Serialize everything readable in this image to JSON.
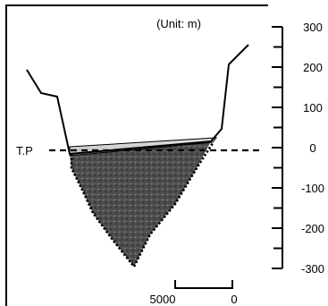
{
  "unit_label": "(Unit: m)",
  "reference_label": "T.P",
  "elevation_scale": {
    "ticks": [
      "300",
      "200",
      "100",
      "0",
      "-100",
      "-200",
      "-300"
    ],
    "range": [
      -300,
      300
    ],
    "major_step": 100,
    "minor_step": 50
  },
  "horizontal_scale": {
    "labels": [
      "5000",
      "0"
    ]
  },
  "colors": {
    "ink": "#000000",
    "sediment_top": "#cfcfcf",
    "basin_fill": "#555555"
  }
}
